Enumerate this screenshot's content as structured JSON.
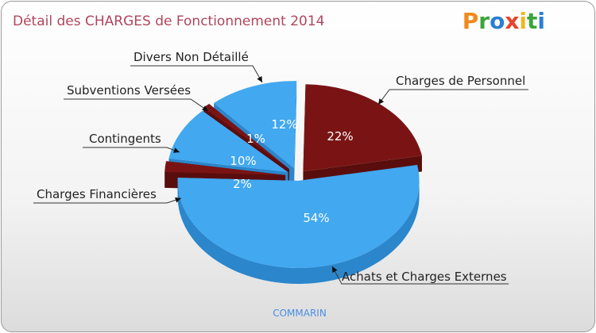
{
  "header": {
    "title": "Détail des CHARGES de Fonctionnement 2014",
    "logo": "Proxiti"
  },
  "footer": {
    "commune": "COMMARIN"
  },
  "colors": {
    "blue": "#42a8f0",
    "blue_dark": "#2b86cc",
    "red": "#7a1414",
    "red_dark": "#5a0d0d",
    "title": "#b0455c"
  },
  "chart_data": {
    "type": "pie",
    "title": "Détail des CHARGES de Fonctionnement 2014",
    "slices": [
      {
        "label": "Charges de Personnel",
        "value": 22,
        "pct_label": "22%",
        "color": "#7a1414",
        "side_color": "#5a0d0d"
      },
      {
        "label": "Achats et Charges Externes",
        "value": 54,
        "pct_label": "54%",
        "color": "#42a8f0",
        "side_color": "#2b86cc"
      },
      {
        "label": "Charges Financières",
        "value": 2,
        "pct_label": "2%",
        "color": "#7a1414",
        "side_color": "#5a0d0d"
      },
      {
        "label": "Contingents",
        "value": 10,
        "pct_label": "10%",
        "color": "#42a8f0",
        "side_color": "#2b86cc"
      },
      {
        "label": "Subventions Versées",
        "value": 1,
        "pct_label": "1%",
        "color": "#7a1414",
        "side_color": "#5a0d0d"
      },
      {
        "label": "Divers Non Détaillé",
        "value": 12,
        "pct_label": "12%",
        "color": "#42a8f0",
        "side_color": "#2b86cc"
      }
    ]
  }
}
